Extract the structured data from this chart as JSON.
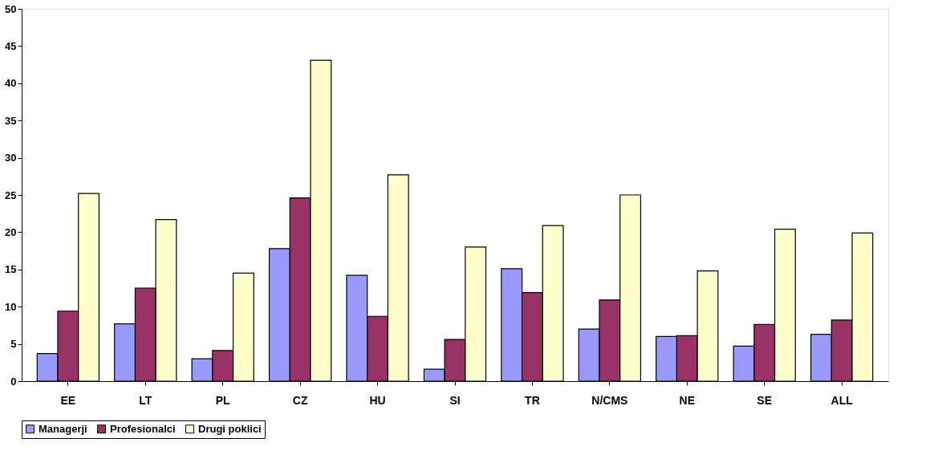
{
  "chart_data": {
    "type": "bar",
    "categories": [
      "EE",
      "LT",
      "PL",
      "CZ",
      "HU",
      "SI",
      "TR",
      "N/CMS",
      "NE",
      "SE",
      "ALL"
    ],
    "series": [
      {
        "name": "Managerji",
        "color": "#9999ff",
        "values": [
          3.7,
          7.7,
          3.0,
          17.8,
          14.2,
          1.6,
          15.1,
          7.0,
          6.0,
          4.7,
          6.3
        ]
      },
      {
        "name": "Profesionalci",
        "color": "#993366",
        "values": [
          9.4,
          12.5,
          4.1,
          24.6,
          8.7,
          5.6,
          11.9,
          10.9,
          6.1,
          7.6,
          8.2
        ]
      },
      {
        "name": "Drugi poklici",
        "color": "#ffffcc",
        "values": [
          25.2,
          21.7,
          14.5,
          43.1,
          27.7,
          18.0,
          20.9,
          25.0,
          14.8,
          20.4,
          19.9
        ]
      }
    ],
    "ylim": [
      0,
      50
    ],
    "yticks": [
      0,
      5,
      10,
      15,
      20,
      25,
      30,
      35,
      40,
      45,
      50
    ],
    "grid": false,
    "legend": "bottom"
  }
}
